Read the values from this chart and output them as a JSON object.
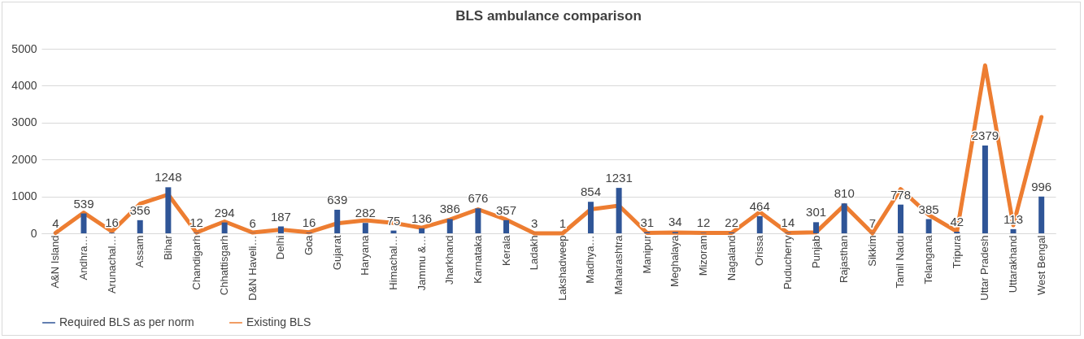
{
  "chart_data": {
    "type": "bar",
    "title": "BLS ambulance comparison",
    "categories": [
      "A&N Island",
      "Andhra…",
      "Arunachal…",
      "Assam",
      "Bihar",
      "Chandigarh",
      "Chhattisgarh",
      "D&N Haveli…",
      "Delhi",
      "Goa",
      "Gujarat",
      "Haryana",
      "Himachal…",
      "Jammu &…",
      "Jharkhand",
      "Karnataka",
      "Kerala",
      "Ladakh",
      "Lakshadweep",
      "Madhya…",
      "Maharashtra",
      "Manipur",
      "Meghalaya",
      "Mizoram",
      "Nagaland",
      "Orissa",
      "Puducherry",
      "Punjab",
      "Rajasthan",
      "Sikkim",
      "Tamil Nadu",
      "Telangana",
      "Tripura",
      "Uttar Pradesh",
      "Uttarakhand",
      "West Bengal"
    ],
    "series": [
      {
        "name": "Required BLS as per norm",
        "color": "#2f5597",
        "data_labels": true,
        "values": [
          4,
          539,
          16,
          356,
          1248,
          12,
          294,
          6,
          187,
          16,
          639,
          282,
          75,
          136,
          386,
          676,
          357,
          3,
          1,
          854,
          1231,
          31,
          34,
          12,
          22,
          464,
          14,
          301,
          810,
          7,
          778,
          385,
          42,
          2379,
          113,
          996
        ]
      },
      {
        "name": "Existing BLS",
        "type": "line",
        "color": "#ed7d31",
        "values": [
          10,
          560,
          50,
          800,
          1050,
          20,
          320,
          20,
          100,
          30,
          270,
          350,
          280,
          150,
          370,
          650,
          370,
          0,
          0,
          650,
          750,
          10,
          20,
          10,
          10,
          580,
          10,
          30,
          760,
          0,
          1200,
          500,
          50,
          4550,
          220,
          3150
        ]
      }
    ],
    "ylim": [
      0,
      5000
    ],
    "yticks": [
      0,
      1000,
      2000,
      3000,
      4000,
      5000
    ],
    "grid": "y",
    "legend": "bottom"
  }
}
